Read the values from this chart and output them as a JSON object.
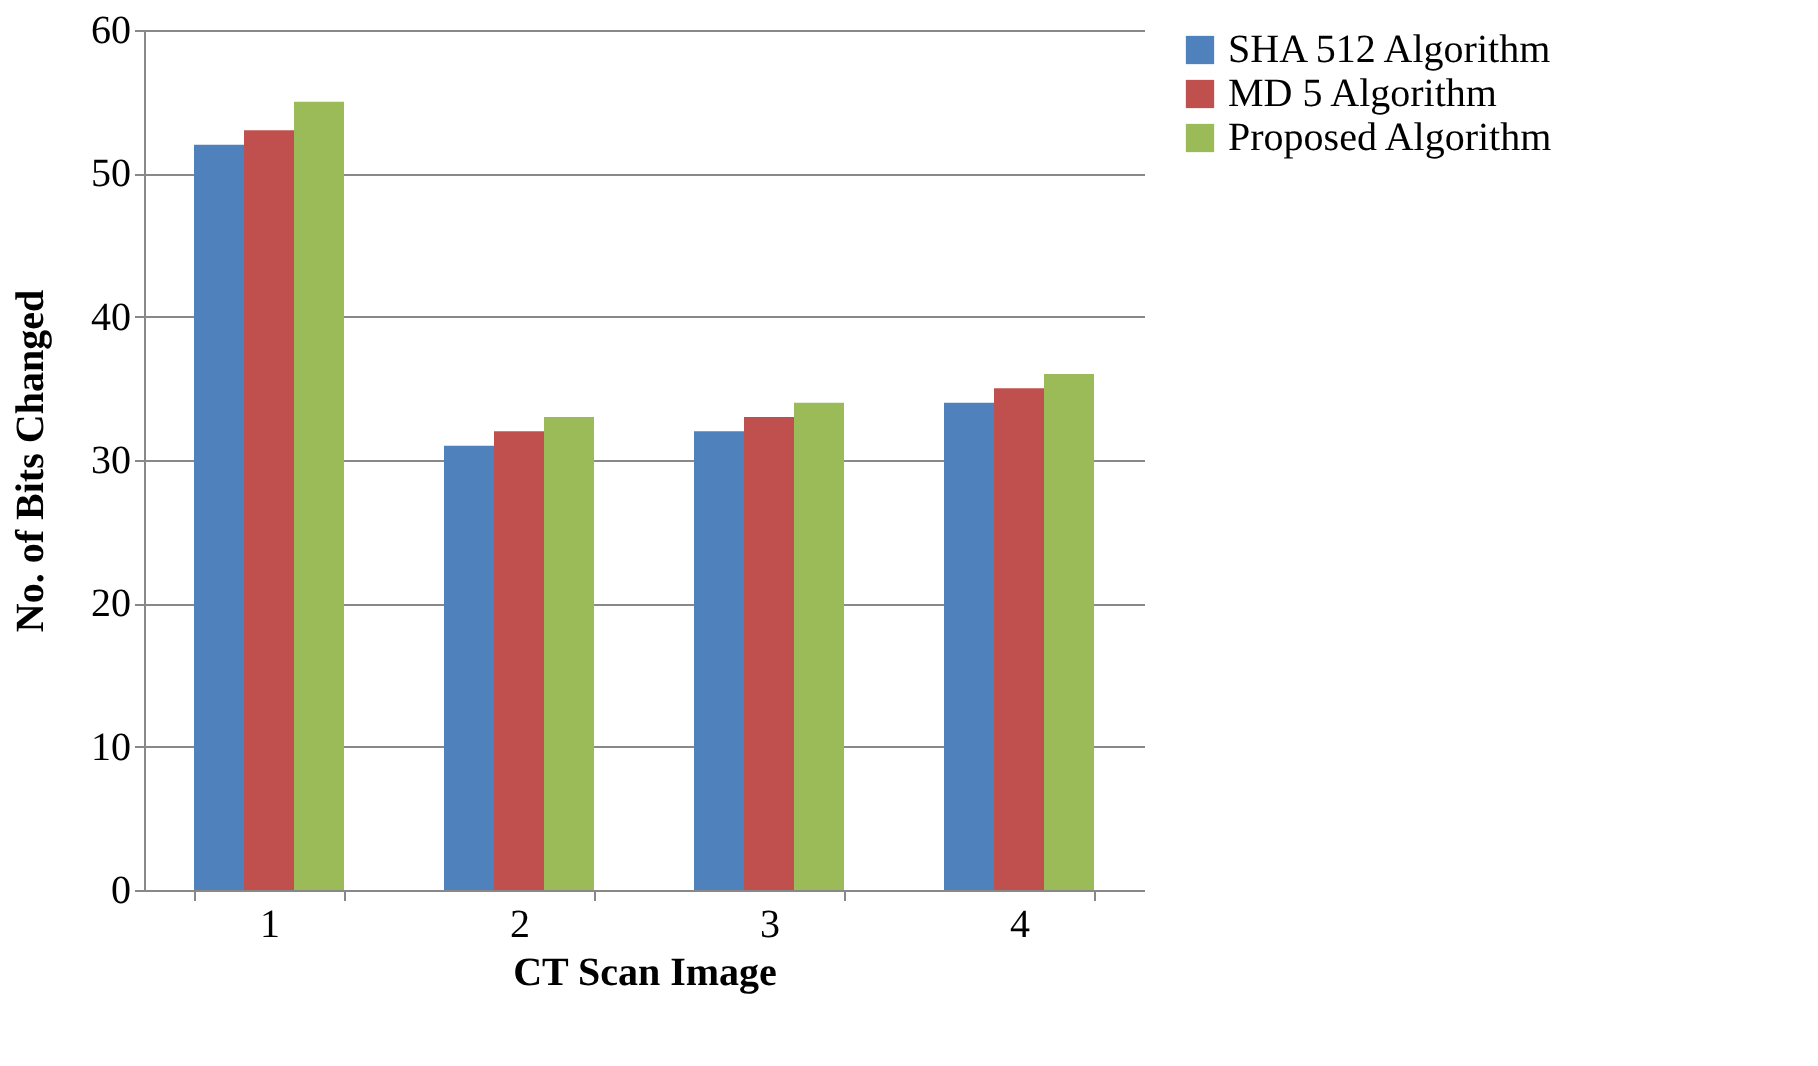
{
  "chart_data": {
    "type": "bar",
    "xlabel": "CT Scan Image",
    "ylabel": "No. of  Bits Changed",
    "categories": [
      "1",
      "2",
      "3",
      "4"
    ],
    "series": [
      {
        "name": "SHA 512 Algorithm",
        "color": "#4f81bd",
        "values": [
          52,
          31,
          32,
          34
        ]
      },
      {
        "name": "MD 5 Algorithm",
        "color": "#c0504d",
        "values": [
          53,
          32,
          33,
          35
        ]
      },
      {
        "name": "Proposed Algorithm",
        "color": "#9bbb59",
        "values": [
          55,
          33,
          34,
          36
        ]
      }
    ],
    "ylim": [
      0,
      60
    ],
    "yticks": [
      0,
      10,
      20,
      30,
      40,
      50,
      60
    ],
    "grid": "y",
    "legend": "right"
  }
}
